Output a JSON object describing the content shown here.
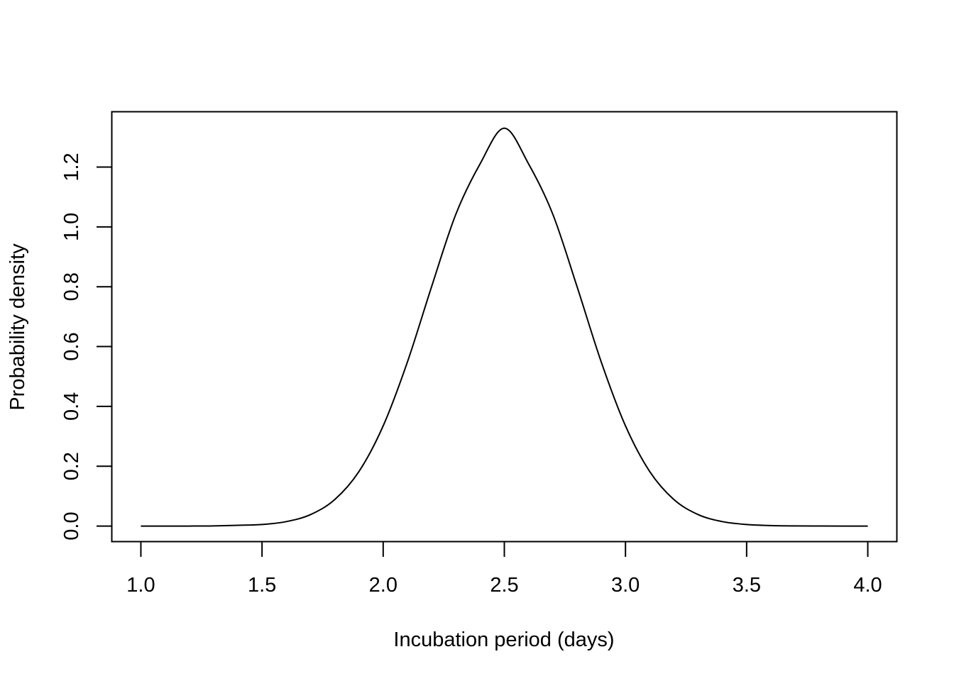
{
  "chart_data": {
    "type": "line",
    "title": "",
    "xlabel": "Incubation period (days)",
    "ylabel": "Probability density",
    "xlim": [
      0.88,
      4.12
    ],
    "ylim": [
      -0.052,
      1.385
    ],
    "x_ticks": [
      1.0,
      1.5,
      2.0,
      2.5,
      3.0,
      3.5,
      4.0
    ],
    "x_tick_labels": [
      "1.0",
      "1.5",
      "2.0",
      "2.5",
      "3.0",
      "3.5",
      "4.0"
    ],
    "y_ticks": [
      0.0,
      0.2,
      0.4,
      0.6,
      0.8,
      1.0,
      1.2
    ],
    "y_tick_labels": [
      "0.0",
      "0.2",
      "0.4",
      "0.6",
      "0.8",
      "1.0",
      "1.2"
    ],
    "grid": false,
    "legend": "none",
    "series": [
      {
        "x": [
          1.0,
          1.1,
          1.2,
          1.3,
          1.4,
          1.5,
          1.6,
          1.7,
          1.8,
          1.9,
          2.0,
          2.1,
          2.2,
          2.3,
          2.4,
          2.5,
          2.6,
          2.7,
          2.8,
          2.9,
          3.0,
          3.1,
          3.2,
          3.3,
          3.4,
          3.5,
          3.6,
          3.7,
          3.8,
          3.9,
          4.0
        ],
        "y": [
          0.0,
          0.0,
          0.0,
          0.0005,
          0.0025,
          0.0051,
          0.0148,
          0.0383,
          0.0885,
          0.1823,
          0.3349,
          0.5484,
          0.8007,
          1.0425,
          1.2107,
          1.3298,
          1.2107,
          1.0425,
          0.8007,
          0.5484,
          0.3349,
          0.1823,
          0.0885,
          0.0383,
          0.0148,
          0.0051,
          0.0016,
          0.0004,
          0.0001,
          0.0,
          0.0
        ]
      }
    ]
  }
}
